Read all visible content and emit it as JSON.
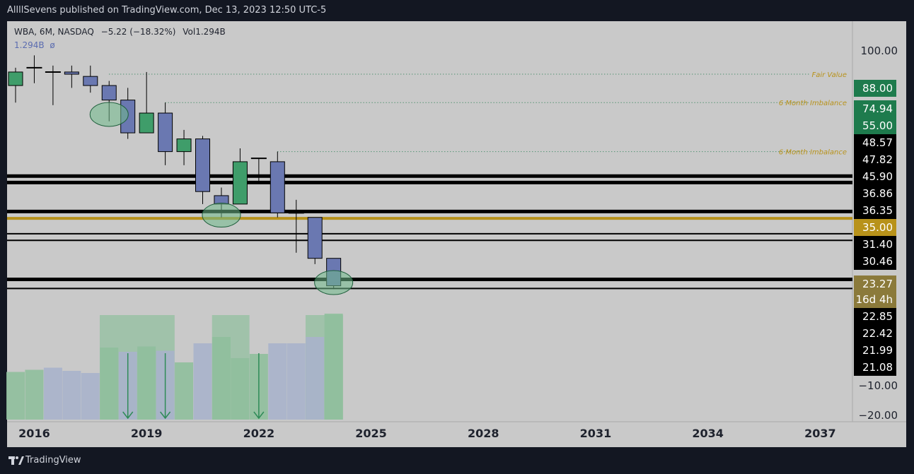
{
  "header": {
    "published": "AllllSevens published on TradingView.com, Dec 13, 2023 12:50 UTC-5"
  },
  "legend": {
    "symbol": "WBA, 6M, NASDAQ",
    "change": "−5.22 (−18.32%)",
    "volume_label": "Vol",
    "volume_value": "1.294B",
    "volume_line": "1.294B",
    "volume_sub": "ø"
  },
  "footer": {
    "brand": "TradingView"
  },
  "colors": {
    "up": "#3f9d6a",
    "down": "#6a78b1",
    "volume_up": "#8fbf9c",
    "volume_down": "#a8b2cb",
    "fair_value": "#1e7b4d",
    "gold": "#b8921a",
    "black": "#000000"
  },
  "chart_data": {
    "type": "candlestick",
    "x_ticks": [
      "2016",
      "2019",
      "2022",
      "2025",
      "2028",
      "2031",
      "2034",
      "2037"
    ],
    "y_axis_top_label": "100.00",
    "price_labels": [
      {
        "text": "88.00",
        "style": "green"
      },
      {
        "text": "74.94",
        "style": "green"
      },
      {
        "text": "55.00",
        "style": "green"
      },
      {
        "text": "48.57",
        "style": "black"
      },
      {
        "text": "47.82",
        "style": "black"
      },
      {
        "text": "45.90",
        "style": "black"
      },
      {
        "text": "36.86",
        "style": "black"
      },
      {
        "text": "36.35",
        "style": "black"
      },
      {
        "text": "35.00",
        "style": "gold"
      },
      {
        "text": "31.40",
        "style": "black"
      },
      {
        "text": "30.46",
        "style": "black"
      },
      {
        "text": "23.27",
        "style": "olive"
      },
      {
        "text": "16d 4h",
        "style": "olive"
      },
      {
        "text": "22.85",
        "style": "black"
      },
      {
        "text": "22.42",
        "style": "black"
      },
      {
        "text": "21.99",
        "style": "black"
      },
      {
        "text": "21.08",
        "style": "black"
      }
    ],
    "volume_ticks": [
      "−10.00",
      "−20.00"
    ],
    "annotations": [
      {
        "text": "Fair Value",
        "price": 88.0
      },
      {
        "text": "6 Month Imbalance",
        "price": 76.0
      },
      {
        "text": "6 Month Imbalance",
        "price": 59.0
      }
    ],
    "support_lines": [
      {
        "price": 52.0,
        "color": "black"
      },
      {
        "price": 50.3,
        "color": "black"
      },
      {
        "price": 43.3,
        "color": "black"
      },
      {
        "price": 41.8,
        "color": "gold"
      },
      {
        "price": 38.6,
        "color": "black"
      },
      {
        "price": 37.3,
        "color": "black"
      },
      {
        "price": 30.5,
        "color": "black"
      },
      {
        "price": 29.1,
        "color": "black"
      }
    ],
    "candles": [
      {
        "t": 2015.5,
        "o": 83,
        "h": 91,
        "l": 76,
        "c": 89,
        "dir": "up"
      },
      {
        "t": 2016.0,
        "o": 91,
        "h": 97,
        "l": 84,
        "c": 91,
        "dir": "flat"
      },
      {
        "t": 2016.5,
        "o": 89,
        "h": 92,
        "l": 75,
        "c": 89,
        "dir": "flat"
      },
      {
        "t": 2017.0,
        "o": 89,
        "h": 92,
        "l": 82,
        "c": 88,
        "dir": "down"
      },
      {
        "t": 2017.5,
        "o": 87,
        "h": 92,
        "l": 80,
        "c": 83,
        "dir": "down"
      },
      {
        "t": 2018.0,
        "o": 83,
        "h": 85,
        "l": 69,
        "c": 77,
        "dir": "down"
      },
      {
        "t": 2018.5,
        "o": 77,
        "h": 82,
        "l": 63,
        "c": 65,
        "dir": "down"
      },
      {
        "t": 2019.0,
        "o": 65,
        "h": 89,
        "l": 65,
        "c": 72,
        "dir": "up"
      },
      {
        "t": 2019.5,
        "o": 72,
        "h": 76,
        "l": 55,
        "c": 59,
        "dir": "down"
      },
      {
        "t": 2020.0,
        "o": 59,
        "h": 66,
        "l": 55,
        "c": 63,
        "dir": "up"
      },
      {
        "t": 2020.5,
        "o": 63,
        "h": 64,
        "l": 45,
        "c": 48,
        "dir": "down"
      },
      {
        "t": 2021.0,
        "o": 47,
        "h": 49,
        "l": 42,
        "c": 45,
        "dir": "down"
      },
      {
        "t": 2021.5,
        "o": 45,
        "h": 60,
        "l": 45,
        "c": 56,
        "dir": "up"
      },
      {
        "t": 2022.0,
        "o": 57,
        "h": 57,
        "l": 50,
        "c": 57,
        "dir": "flat"
      },
      {
        "t": 2022.5,
        "o": 56,
        "h": 59,
        "l": 42,
        "c": 43,
        "dir": "down"
      },
      {
        "t": 2023.0,
        "o": 43,
        "h": 46,
        "l": 35,
        "c": 43,
        "dir": "flat"
      },
      {
        "t": 2023.5,
        "o": 42,
        "h": 42,
        "l": 33,
        "c": 34,
        "dir": "down"
      },
      {
        "t": 2024.0,
        "o": 34,
        "h": 34,
        "l": 29,
        "c": 29.5,
        "dir": "down"
      }
    ],
    "circles": [
      {
        "t": 2018.0,
        "price": 71.5
      },
      {
        "t": 2021.0,
        "price": 42.5
      },
      {
        "t": 2024.0,
        "price": 30.0
      }
    ],
    "volume": [
      {
        "t": 2015.5,
        "v": 0.45,
        "dir": "up"
      },
      {
        "t": 2016.0,
        "v": 0.47,
        "dir": "up"
      },
      {
        "t": 2016.5,
        "v": 0.49,
        "dir": "down"
      },
      {
        "t": 2017.0,
        "v": 0.46,
        "dir": "down"
      },
      {
        "t": 2017.5,
        "v": 0.44,
        "dir": "down"
      },
      {
        "t": 2018.0,
        "v": 0.68,
        "dir": "up"
      },
      {
        "t": 2018.5,
        "v": 0.64,
        "dir": "down"
      },
      {
        "t": 2019.0,
        "v": 0.69,
        "dir": "up"
      },
      {
        "t": 2019.5,
        "v": 0.65,
        "dir": "down"
      },
      {
        "t": 2020.0,
        "v": 0.54,
        "dir": "up"
      },
      {
        "t": 2020.5,
        "v": 0.72,
        "dir": "down"
      },
      {
        "t": 2021.0,
        "v": 0.78,
        "dir": "up"
      },
      {
        "t": 2021.5,
        "v": 0.58,
        "dir": "up"
      },
      {
        "t": 2022.0,
        "v": 0.62,
        "dir": "up"
      },
      {
        "t": 2022.5,
        "v": 0.72,
        "dir": "down"
      },
      {
        "t": 2023.0,
        "v": 0.72,
        "dir": "down"
      },
      {
        "t": 2023.5,
        "v": 0.78,
        "dir": "down"
      },
      {
        "t": 2024.0,
        "v": 1.0,
        "dir": "up"
      }
    ],
    "volume_boxes": [
      {
        "t0": 2017.75,
        "t1": 2019.75
      },
      {
        "t0": 2020.75,
        "t1": 2021.75
      },
      {
        "t0": 2023.25,
        "t1": 2024.25
      }
    ],
    "arrows": [
      2018.5,
      2019.5,
      2022.0
    ]
  }
}
